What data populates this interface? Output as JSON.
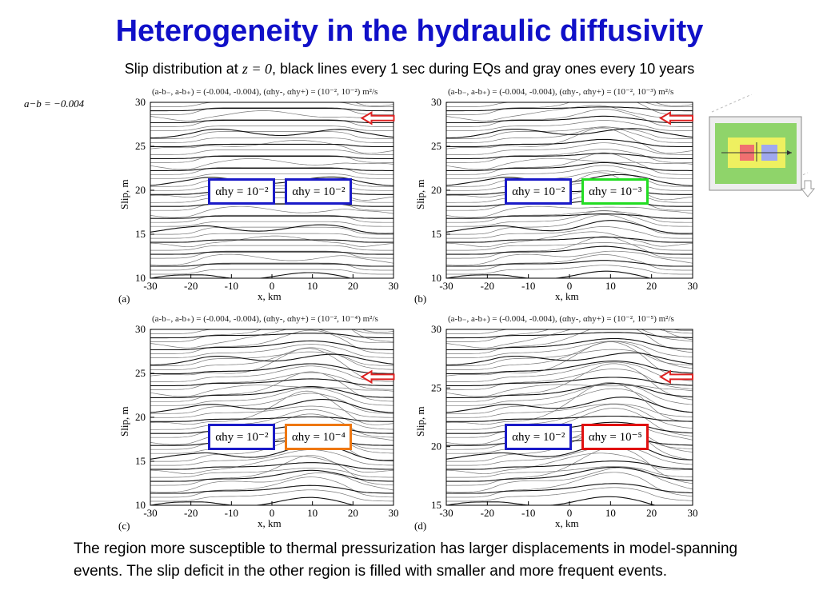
{
  "title": "Heterogeneity in the hydraulic diffusivity",
  "subtitle": {
    "prefix": "Slip distribution at",
    "math": "z = 0",
    "suffix": ", black lines every 1 sec during EQs and gray ones every 10 years"
  },
  "side_note": "a−b = −0.004",
  "x_axis_label": "x, km",
  "y_axis_label": "Slip, m",
  "panels": [
    {
      "letter": "(a)",
      "header": "(a-b₋, a-b₊) = (-0.004, -0.004), (αhy-, αhy+) = (10⁻², 10⁻²) m²/s",
      "left_alpha": "αhy = 10⁻²",
      "right_alpha": "αhy = 10⁻²",
      "left_color": "#1a1ac8",
      "right_color": "#1a1ac8",
      "yticks": [
        "10",
        "15",
        "20",
        "25",
        "30"
      ],
      "xticks": [
        "-30",
        "-20",
        "-10",
        "0",
        "10",
        "20",
        "30"
      ]
    },
    {
      "letter": "(b)",
      "header": "(a-b₋, a-b₊) = (-0.004, -0.004), (αhy-, αhy+) = (10⁻², 10⁻³) m²/s",
      "left_alpha": "αhy = 10⁻²",
      "right_alpha": "αhy = 10⁻³",
      "left_color": "#1a1ac8",
      "right_color": "#22dd22",
      "yticks": [
        "10",
        "15",
        "20",
        "25",
        "30"
      ],
      "xticks": [
        "-30",
        "-20",
        "-10",
        "0",
        "10",
        "20",
        "30"
      ]
    },
    {
      "letter": "(c)",
      "header": "(a-b₋, a-b₊) = (-0.004, -0.004), (αhy-, αhy+) = (10⁻², 10⁻⁴) m²/s",
      "left_alpha": "αhy = 10⁻²",
      "right_alpha": "αhy = 10⁻⁴",
      "left_color": "#1a1ac8",
      "right_color": "#ee7711",
      "yticks": [
        "10",
        "15",
        "20",
        "25",
        "30"
      ],
      "xticks": [
        "-30",
        "-20",
        "-10",
        "0",
        "10",
        "20",
        "30"
      ]
    },
    {
      "letter": "(d)",
      "header": "(a-b₋, a-b₊) = (-0.004, -0.004), (αhy-, αhy+) = (10⁻², 10⁻⁵) m²/s",
      "left_alpha": "αhy = 10⁻²",
      "right_alpha": "αhy = 10⁻⁵",
      "left_color": "#1a1ac8",
      "right_color": "#e01010",
      "yticks": [
        "15",
        "20",
        "25",
        "30"
      ],
      "xticks": [
        "-30",
        "-20",
        "-10",
        "0",
        "10",
        "20",
        "30"
      ]
    }
  ],
  "arrow_color": "#dd2222",
  "fault_diagram_colors": {
    "outer": "#8fd46a",
    "inner": "#eef060",
    "left_patch": "#f07070",
    "right_patch": "#9fa8ee"
  },
  "caption": "The region more susceptible to thermal pressurization has larger displacements in model-spanning events. The slip deficit in the other region is filled with smaller and more frequent events."
}
